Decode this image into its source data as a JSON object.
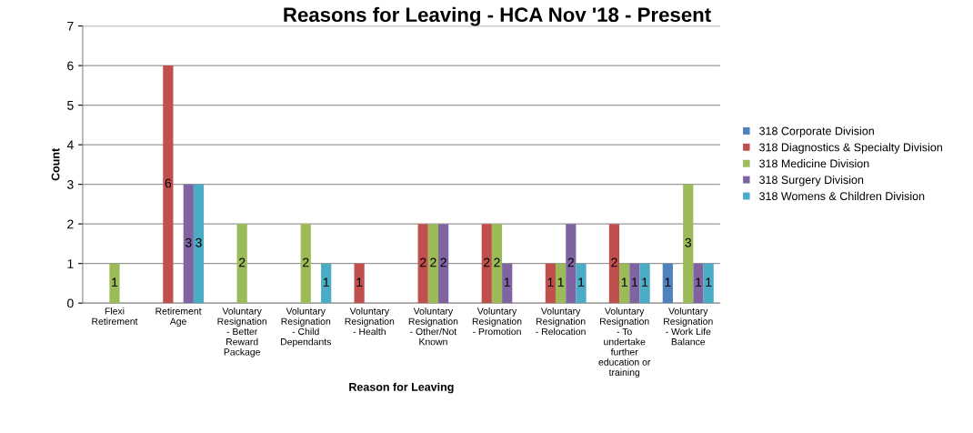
{
  "chart_data": {
    "type": "bar",
    "title": "Reasons for Leaving - HCA Nov '18 - Present",
    "xlabel": "Reason for Leaving",
    "ylabel": "Count",
    "categories": [
      "Flexi\nRetirement",
      "Retirement\nAge",
      "Voluntary\nResignation\n- Better\nReward\nPackage",
      "Voluntary\nResignation\n- Child\nDependants",
      "Voluntary\nResignation\n- Health",
      "Voluntary\nResignation\n- Other/Not\nKnown",
      "Voluntary\nResignation\n- Promotion",
      "Voluntary\nResignation\n- Relocation",
      "Voluntary\nResignation\n- To\nundertake\nfurther\neducation or\ntraining",
      "Voluntary\nResignation\n- Work Life\nBalance"
    ],
    "series": [
      {
        "name": "318 Corporate Division",
        "color": "#4f81bd",
        "values": [
          null,
          null,
          null,
          null,
          null,
          null,
          null,
          null,
          null,
          1
        ]
      },
      {
        "name": "318 Diagnostics & Specialty Division",
        "color": "#c0504d",
        "values": [
          null,
          6,
          null,
          null,
          1,
          2,
          2,
          1,
          2,
          null
        ]
      },
      {
        "name": "318 Medicine Division",
        "color": "#9bbb59",
        "values": [
          1,
          null,
          2,
          2,
          null,
          2,
          2,
          1,
          1,
          3
        ]
      },
      {
        "name": "318 Surgery Division",
        "color": "#8064a2",
        "values": [
          null,
          3,
          null,
          null,
          null,
          2,
          1,
          2,
          1,
          1
        ]
      },
      {
        "name": "318 Womens & Children Division",
        "color": "#4bacc6",
        "values": [
          null,
          3,
          null,
          1,
          null,
          null,
          null,
          1,
          1,
          1
        ]
      }
    ],
    "ylim": [
      0,
      7
    ],
    "yticks": [
      0,
      1,
      2,
      3,
      4,
      5,
      6,
      7
    ],
    "grid": "y",
    "legend": "right",
    "data_labels": true
  }
}
